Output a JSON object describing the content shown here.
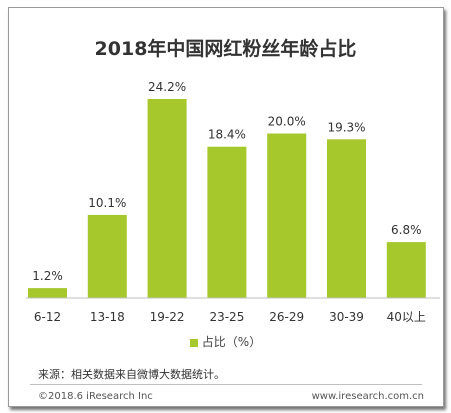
{
  "chart_data": {
    "type": "bar",
    "title": "2018年中国网红粉丝年龄占比",
    "categories": [
      "6-12",
      "13-18",
      "19-22",
      "23-25",
      "26-29",
      "30-39",
      "40以上"
    ],
    "series": [
      {
        "name": "占比（%）",
        "values": [
          1.2,
          10.1,
          24.2,
          18.4,
          20.0,
          19.3,
          6.8
        ]
      }
    ],
    "data_labels": [
      "1.2%",
      "10.1%",
      "24.2%",
      "18.4%",
      "20.0%",
      "19.3%",
      "6.8%"
    ],
    "ylim": [
      0,
      24.2
    ],
    "grid": false,
    "legend_position": "bottom",
    "bar_color": "#a6c82c"
  },
  "source_note": "来源：相关数据来自微博大数据统计。",
  "footer": {
    "copyright": "©2018.6 iResearch Inc",
    "website": "www.iresearch.com.cn"
  }
}
